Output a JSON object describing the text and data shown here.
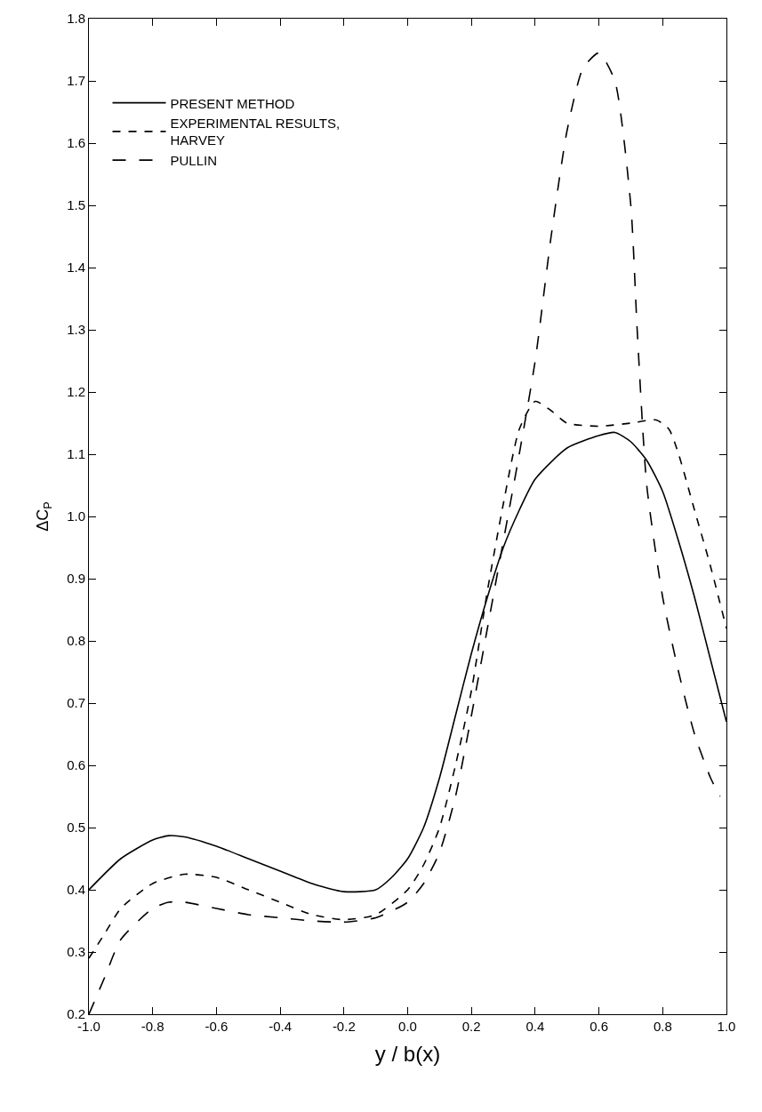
{
  "chart_data": {
    "type": "line",
    "xlabel": "y / b(x)",
    "ylabel": "ΔC$_{P}$",
    "xlim": [
      -1.0,
      1.0
    ],
    "ylim": [
      0.2,
      1.8
    ],
    "xticks": [
      {
        "value": -1.0,
        "label": "-1.0"
      },
      {
        "value": -0.8,
        "label": "-0.8"
      },
      {
        "value": -0.6,
        "label": "-0.6"
      },
      {
        "value": -0.4,
        "label": "-0.4"
      },
      {
        "value": -0.2,
        "label": "-0.2"
      },
      {
        "value": 0.0,
        "label": "0.0"
      },
      {
        "value": 0.2,
        "label": "0.2"
      },
      {
        "value": 0.4,
        "label": "0.4"
      },
      {
        "value": 0.6,
        "label": "0.6"
      },
      {
        "value": 0.8,
        "label": "0.8"
      },
      {
        "value": 1.0,
        "label": "1.0"
      }
    ],
    "yticks": [
      0.2,
      0.3,
      0.4,
      0.5,
      0.6,
      0.7,
      0.8,
      0.9,
      {
        "value": 1.0,
        "label": "1.0"
      },
      1.1,
      1.2,
      1.3,
      1.4,
      1.5,
      1.6,
      1.7,
      1.8
    ],
    "legend": "top left",
    "marker": "none",
    "series": [
      {
        "name": "PRESENT METHOD",
        "color": "#000000",
        "line_style": "solid",
        "x": [
          -1.0,
          -0.9,
          -0.8,
          -0.75,
          -0.7,
          -0.6,
          -0.5,
          -0.4,
          -0.3,
          -0.2,
          -0.1,
          -0.05,
          0.0,
          0.05,
          0.1,
          0.15,
          0.2,
          0.25,
          0.3,
          0.35,
          0.4,
          0.5,
          0.6,
          0.65,
          0.7,
          0.75,
          0.8,
          0.85,
          0.9,
          0.95,
          1.0
        ],
        "values": [
          0.4,
          0.45,
          0.48,
          0.487,
          0.485,
          0.47,
          0.45,
          0.43,
          0.41,
          0.397,
          0.4,
          0.42,
          0.45,
          0.5,
          0.58,
          0.68,
          0.78,
          0.87,
          0.95,
          1.01,
          1.06,
          1.11,
          1.13,
          1.135,
          1.12,
          1.09,
          1.04,
          0.96,
          0.87,
          0.77,
          0.67
        ]
      },
      {
        "name": "EXPERIMENTAL RESULTS,\nHARVEY",
        "color": "#000000",
        "line_style": "dashed",
        "x": [
          -1.0,
          -0.95,
          -0.9,
          -0.8,
          -0.7,
          -0.6,
          -0.5,
          -0.4,
          -0.3,
          -0.2,
          -0.1,
          0.0,
          0.05,
          0.1,
          0.15,
          0.2,
          0.25,
          0.3,
          0.35,
          0.4,
          0.45,
          0.5,
          0.6,
          0.7,
          0.78,
          0.82,
          0.85,
          0.9,
          0.95,
          1.0
        ],
        "values": [
          0.29,
          0.33,
          0.37,
          0.41,
          0.425,
          0.42,
          0.4,
          0.38,
          0.36,
          0.352,
          0.36,
          0.4,
          0.44,
          0.5,
          0.6,
          0.72,
          0.88,
          1.02,
          1.14,
          1.185,
          1.17,
          1.15,
          1.145,
          1.15,
          1.155,
          1.14,
          1.1,
          1.01,
          0.92,
          0.82
        ]
      },
      {
        "name": "PULLIN",
        "color": "#000000",
        "line_style": "dashed",
        "x": [
          -1.0,
          -0.95,
          -0.9,
          -0.8,
          -0.75,
          -0.7,
          -0.6,
          -0.5,
          -0.4,
          -0.3,
          -0.2,
          -0.1,
          0.0,
          0.05,
          0.1,
          0.15,
          0.2,
          0.25,
          0.3,
          0.35,
          0.4,
          0.45,
          0.5,
          0.55,
          0.6,
          0.65,
          0.7,
          0.72,
          0.75,
          0.8,
          0.85,
          0.9,
          0.95,
          0.98
        ],
        "values": [
          0.2,
          0.26,
          0.32,
          0.37,
          0.38,
          0.38,
          0.37,
          0.36,
          0.355,
          0.35,
          0.348,
          0.355,
          0.38,
          0.41,
          0.46,
          0.55,
          0.68,
          0.82,
          0.96,
          1.1,
          1.25,
          1.45,
          1.62,
          1.72,
          1.745,
          1.7,
          1.5,
          1.3,
          1.05,
          0.87,
          0.75,
          0.65,
          0.58,
          0.55
        ]
      }
    ]
  }
}
